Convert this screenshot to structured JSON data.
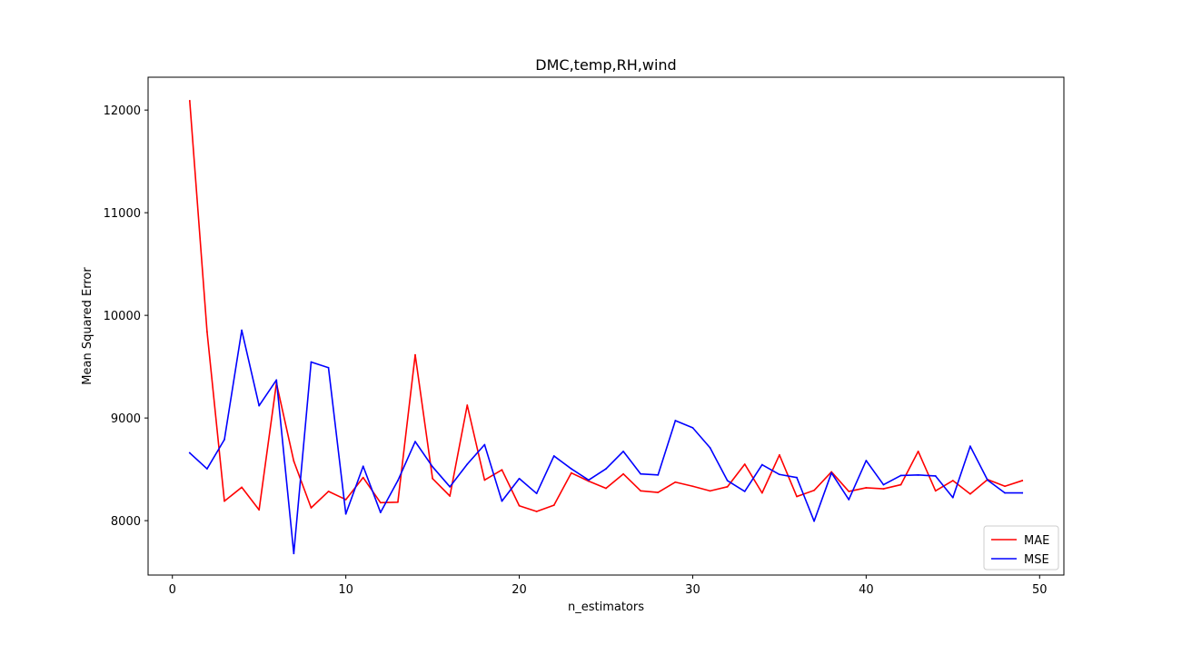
{
  "chart_data": {
    "type": "line",
    "title": "DMC,temp,RH,wind",
    "xlabel": "n_estimators",
    "ylabel": "Mean Squared Error",
    "xlim": [
      -1.4,
      51.4
    ],
    "ylim": [
      7470,
      12320
    ],
    "xticks": [
      0,
      10,
      20,
      30,
      40,
      50
    ],
    "yticks": [
      8000,
      9000,
      10000,
      11000,
      12000
    ],
    "grid": false,
    "legend_position": "lower-right",
    "x": [
      1,
      2,
      3,
      4,
      5,
      6,
      7,
      8,
      9,
      10,
      11,
      12,
      13,
      14,
      15,
      16,
      17,
      18,
      19,
      20,
      21,
      22,
      23,
      24,
      25,
      26,
      27,
      28,
      29,
      30,
      31,
      32,
      33,
      34,
      35,
      36,
      37,
      38,
      39,
      40,
      41,
      42,
      43,
      44,
      45,
      46,
      47,
      48,
      49
    ],
    "series": [
      {
        "name": "MAE",
        "color": "#ff0000",
        "values": [
          12090,
          9840,
          8190,
          8325,
          8105,
          9340,
          8580,
          8125,
          8285,
          8205,
          8420,
          8175,
          8180,
          9615,
          8410,
          8240,
          9125,
          8395,
          8495,
          8145,
          8090,
          8150,
          8465,
          8385,
          8315,
          8455,
          8290,
          8275,
          8375,
          8335,
          8290,
          8330,
          8550,
          8270,
          8640,
          8235,
          8295,
          8475,
          8285,
          8320,
          8310,
          8350,
          8675,
          8290,
          8390,
          8260,
          8400,
          8335,
          8390
        ]
      },
      {
        "name": "MSE",
        "color": "#0000ff",
        "values": [
          8660,
          8505,
          8790,
          9855,
          9120,
          9370,
          7680,
          9545,
          9490,
          8065,
          8530,
          8080,
          8390,
          8770,
          8525,
          8330,
          8550,
          8740,
          8190,
          8410,
          8265,
          8630,
          8505,
          8395,
          8505,
          8675,
          8455,
          8445,
          8975,
          8905,
          8710,
          8390,
          8285,
          8545,
          8450,
          8420,
          7995,
          8465,
          8205,
          8585,
          8350,
          8440,
          8445,
          8435,
          8225,
          8725,
          8395,
          8270,
          8270
        ]
      }
    ]
  }
}
